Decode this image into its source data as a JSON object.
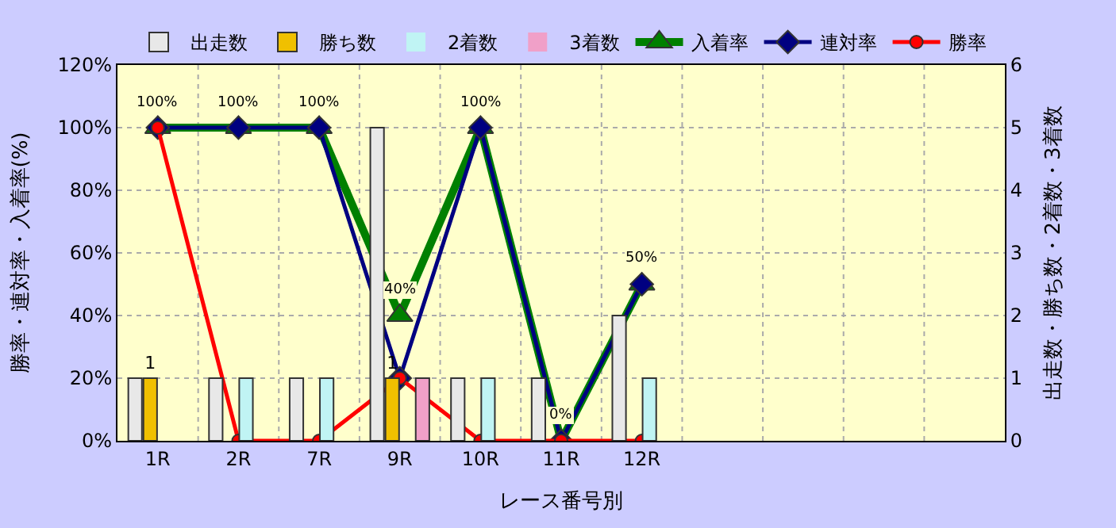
{
  "chart_data": {
    "type": "bar",
    "categories": [
      "1R",
      "2R",
      "7R",
      "9R",
      "10R",
      "11R",
      "12R",
      null,
      null,
      null,
      null
    ],
    "xlabel": "レース番号別",
    "ylabel": "勝率・連対率・入着率(%)",
    "y2label": "出走数・勝ち数・2着数・3着数",
    "ylim": [
      0,
      120
    ],
    "yticks": [
      {
        "value": 0,
        "label": "0%"
      },
      {
        "value": 20,
        "label": "20%"
      },
      {
        "value": 40,
        "label": "40%"
      },
      {
        "value": 60,
        "label": "60%"
      },
      {
        "value": 80,
        "label": "80%"
      },
      {
        "value": 100,
        "label": "100%"
      },
      {
        "value": 120,
        "label": "120%"
      }
    ],
    "y2lim": [
      0,
      6
    ],
    "y2ticks": [
      0,
      1,
      2,
      3,
      4,
      5,
      6
    ],
    "grid": true,
    "legend": "top",
    "series": [
      {
        "name": "出走数",
        "axis": "y2",
        "color": "#e8e8e8",
        "values": [
          1,
          1,
          1,
          5,
          1,
          1,
          2,
          null,
          null,
          null,
          null
        ]
      },
      {
        "name": "勝ち数",
        "axis": "y2",
        "color": "#f0c000",
        "values": [
          1,
          0,
          0,
          1,
          0,
          0,
          0,
          null,
          null,
          null,
          null
        ],
        "value_labels": [
          "1",
          null,
          null,
          "1",
          null,
          null,
          null,
          null,
          null,
          null,
          null
        ]
      },
      {
        "name": "2着数",
        "axis": "y2",
        "color": "#c0f4f4",
        "values": [
          0,
          1,
          1,
          0,
          1,
          0,
          1,
          null,
          null,
          null,
          null
        ]
      },
      {
        "name": "3着数",
        "axis": "y2",
        "color": "#f0a0c8",
        "values": [
          0,
          0,
          0,
          1,
          0,
          0,
          0,
          null,
          null,
          null,
          null
        ]
      },
      {
        "name": "入着率",
        "type": "line",
        "color": "#008000",
        "marker": "triangle",
        "values": [
          100,
          100,
          100,
          40,
          100,
          0,
          50,
          null,
          null,
          null,
          null
        ],
        "value_labels": [
          "100%",
          "100%",
          "100%",
          "40%",
          "100%",
          "0%",
          "50%",
          null,
          null,
          null,
          null
        ]
      },
      {
        "name": "連対率",
        "type": "line",
        "color": "#000080",
        "marker": "diamond",
        "values": [
          100,
          100,
          100,
          20,
          100,
          0,
          50,
          null,
          null,
          null,
          null
        ]
      },
      {
        "name": "勝率",
        "type": "line",
        "color": "#ff0000",
        "marker": "circle",
        "values": [
          100,
          0,
          0,
          20,
          0,
          0,
          0,
          null,
          null,
          null,
          null
        ]
      }
    ]
  }
}
